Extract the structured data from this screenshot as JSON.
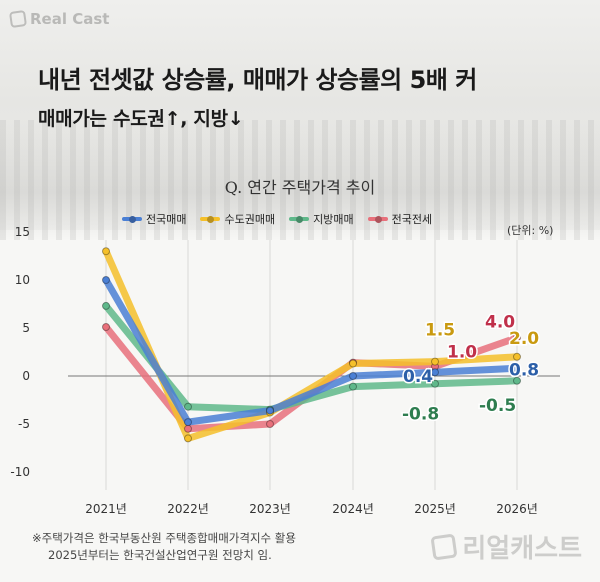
{
  "brand": {
    "logo_text": "Real Cast",
    "watermark_text": "리얼캐스트"
  },
  "header": {
    "title": "내년 전셋값 상승률, 매매가 상승률의 5배 커",
    "subtitle": "매매가는 수도권↑, 지방↓"
  },
  "chart_data": {
    "type": "line",
    "title": "Q. 연간 주택가격 추이",
    "unit_label": "(단위: %)",
    "categories": [
      "2021년",
      "2022년",
      "2023년",
      "2024년",
      "2025년",
      "2026년"
    ],
    "ylim": [
      -10,
      15
    ],
    "yticks": [
      15,
      10,
      5,
      0,
      -5,
      -10
    ],
    "ytick_labels": [
      "15",
      "10",
      "5",
      "0",
      "-5",
      "-10"
    ],
    "grid": false,
    "legend_position": "top",
    "series": [
      {
        "name": "전국매매",
        "color": "#4a7fd4",
        "values": [
          10.0,
          -4.8,
          -3.6,
          0.0,
          0.4,
          0.8
        ]
      },
      {
        "name": "수도권매매",
        "color": "#f5c02a",
        "values": [
          13.0,
          -6.5,
          -3.8,
          1.3,
          1.5,
          2.0
        ]
      },
      {
        "name": "지방매매",
        "color": "#5fb88a",
        "values": [
          7.3,
          -3.2,
          -3.5,
          -1.1,
          -0.8,
          -0.5
        ]
      },
      {
        "name": "전국전세",
        "color": "#e8707b",
        "values": [
          5.1,
          -5.5,
          -5.0,
          1.4,
          1.0,
          4.0
        ]
      }
    ],
    "data_labels": [
      {
        "series": 1,
        "index": 4,
        "text": "1.5",
        "color": "#c99a10"
      },
      {
        "series": 3,
        "index": 4,
        "text": "1.0",
        "color": "#c0304a"
      },
      {
        "series": 0,
        "index": 4,
        "text": "0.4",
        "color": "#2c5fa8"
      },
      {
        "series": 2,
        "index": 4,
        "text": "-0.8",
        "color": "#2e7d4f"
      },
      {
        "series": 3,
        "index": 5,
        "text": "4.0",
        "color": "#c0304a"
      },
      {
        "series": 1,
        "index": 5,
        "text": "2.0",
        "color": "#c99a10"
      },
      {
        "series": 0,
        "index": 5,
        "text": "0.8",
        "color": "#2c5fa8"
      },
      {
        "series": 2,
        "index": 5,
        "text": "-0.5",
        "color": "#2e7d4f"
      }
    ]
  },
  "footnote": {
    "line1": "※주택가격은 한국부동산원 주택종합매매가격지수 활용",
    "line2": "2025년부터는 한국건설산업연구원 전망치 임."
  }
}
